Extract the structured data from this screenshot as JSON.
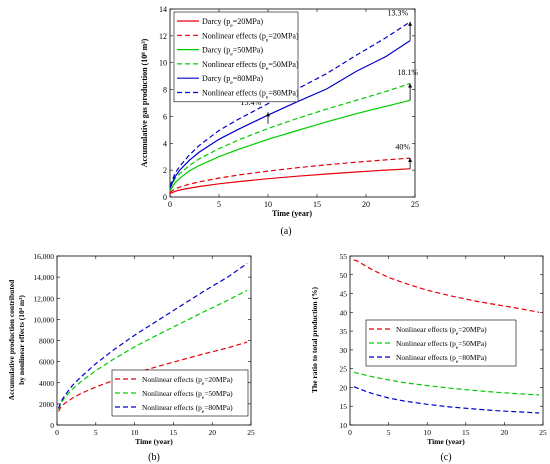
{
  "chart_data": [
    {
      "id": "a",
      "type": "line",
      "panel_label": "(a)",
      "xlabel": "Time (year)",
      "ylabel": "Accumulative gas production (10⁸ m³)",
      "xlim": [
        0,
        25
      ],
      "ylim": [
        0,
        14
      ],
      "xticks": [
        0,
        5,
        10,
        15,
        20,
        25
      ],
      "yticks": [
        0,
        2,
        4,
        6,
        8,
        10,
        12,
        14
      ],
      "legend_position": "top-left",
      "x": [
        0,
        0.5,
        1,
        2,
        3,
        5,
        7,
        10,
        13,
        16,
        19,
        22,
        24.5
      ],
      "series": [
        {
          "name": "Darcy (pₑ=20MPa)",
          "color": "#e8000b",
          "dash": "solid",
          "values": [
            0.25,
            0.42,
            0.52,
            0.66,
            0.78,
            0.98,
            1.15,
            1.36,
            1.55,
            1.71,
            1.86,
            2.0,
            2.1
          ]
        },
        {
          "name": "Nonlinear effects (pₑ=20MPa)",
          "color": "#e8000b",
          "dash": "dashed",
          "values": [
            0.35,
            0.6,
            0.74,
            0.96,
            1.13,
            1.41,
            1.64,
            1.93,
            2.18,
            2.4,
            2.59,
            2.76,
            2.9
          ]
        },
        {
          "name": "Darcy (pₑ=50MPa)",
          "color": "#00cc00",
          "dash": "solid",
          "values": [
            0.45,
            1.05,
            1.4,
            1.95,
            2.35,
            3.0,
            3.55,
            4.3,
            4.95,
            5.6,
            6.2,
            6.75,
            7.2
          ]
        },
        {
          "name": "Nonlinear effects (pₑ=50MPa)",
          "color": "#00cc00",
          "dash": "dashed",
          "values": [
            0.6,
            1.35,
            1.75,
            2.35,
            2.85,
            3.6,
            4.25,
            5.1,
            5.85,
            6.55,
            7.2,
            7.85,
            8.45
          ]
        },
        {
          "name": "Darcy (pₑ=80MPa)",
          "color": "#0000cc",
          "dash": "solid",
          "values": [
            0.65,
            1.5,
            2.0,
            2.75,
            3.35,
            4.3,
            5.05,
            6.1,
            7.1,
            8.05,
            9.35,
            10.45,
            11.65
          ]
        },
        {
          "name": "Nonlinear effects (pₑ=80MPa)",
          "color": "#0000cc",
          "dash": "dashed",
          "values": [
            0.8,
            1.75,
            2.3,
            3.15,
            3.85,
            4.95,
            5.8,
            6.95,
            8.05,
            9.2,
            10.55,
            11.85,
            13.05
          ]
        }
      ],
      "annotations": [
        {
          "text": "13.3%",
          "x": 24.5,
          "y1": 11.65,
          "y2": 13.05,
          "tx": 22.2,
          "ty": 13.5
        },
        {
          "text": "18.1%",
          "x": 24.5,
          "y1": 7.2,
          "y2": 8.45,
          "tx": 23.2,
          "ty": 9.1
        },
        {
          "text": "15.4%",
          "x": 10,
          "y1": 5.45,
          "y2": 6.3,
          "tx": 7.2,
          "ty": 6.85
        },
        {
          "text": "40%",
          "x": 24.5,
          "y1": 2.1,
          "y2": 2.9,
          "tx": 23.0,
          "ty": 3.55
        }
      ]
    },
    {
      "id": "b",
      "type": "line",
      "panel_label": "(b)",
      "xlabel": "Time (year)",
      "ylabel": "Accumulative production contributed by nonlinear effects (10⁴ m³)",
      "xlim": [
        0,
        25
      ],
      "ylim": [
        0,
        16000
      ],
      "xticks": [
        0,
        5,
        10,
        15,
        20,
        25
      ],
      "yticks": [
        0,
        2000,
        4000,
        6000,
        8000,
        10000,
        12000,
        14000,
        16000
      ],
      "ytick_labels": [
        "0",
        "2000",
        "4000",
        "6000",
        "8000",
        "10,000",
        "12,000",
        "14,000",
        "16,000"
      ],
      "legend_position": "bottom-right",
      "x": [
        0.2,
        0.5,
        1,
        2,
        3,
        5,
        7,
        10,
        13,
        16,
        19,
        22,
        24.5
      ],
      "series": [
        {
          "name": "Nonlinear effects (pₑ=20MPa)",
          "color": "#e8000b",
          "dash": "dashed",
          "values": [
            1300,
            1700,
            2050,
            2550,
            2950,
            3600,
            4150,
            4900,
            5550,
            6150,
            6750,
            7300,
            7850
          ]
        },
        {
          "name": "Nonlinear effects (pₑ=50MPa)",
          "color": "#00cc00",
          "dash": "dashed",
          "values": [
            1500,
            2050,
            2600,
            3400,
            4050,
            5150,
            6100,
            7400,
            8550,
            9650,
            10750,
            11800,
            12750
          ]
        },
        {
          "name": "Nonlinear effects (pₑ=80MPa)",
          "color": "#0000cc",
          "dash": "dashed",
          "values": [
            1600,
            2200,
            2800,
            3750,
            4500,
            5800,
            6950,
            8500,
            9900,
            11300,
            12700,
            14000,
            15300
          ]
        }
      ]
    },
    {
      "id": "c",
      "type": "line",
      "panel_label": "(c)",
      "xlabel": "Time (year)",
      "ylabel": "The ratio to total production (%)",
      "xlim": [
        0,
        25
      ],
      "ylim": [
        10,
        55
      ],
      "xticks": [
        0,
        5,
        10,
        15,
        20,
        25
      ],
      "yticks": [
        10,
        15,
        20,
        25,
        30,
        35,
        40,
        45,
        50,
        55
      ],
      "legend_position": "center-right",
      "x": [
        0.5,
        1,
        2,
        3,
        5,
        7,
        10,
        13,
        16,
        19,
        22,
        24.5
      ],
      "series": [
        {
          "name": "Nonlinear effects (pₑ=20MPa)",
          "color": "#e8000b",
          "dash": "dashed",
          "values": [
            54,
            53.6,
            52.4,
            51.2,
            49.3,
            47.8,
            45.9,
            44.4,
            43.1,
            42.0,
            41.0,
            40.0
          ]
        },
        {
          "name": "Nonlinear effects (pₑ=50MPa)",
          "color": "#00cc00",
          "dash": "dashed",
          "values": [
            24,
            23.8,
            23.3,
            22.8,
            22.0,
            21.3,
            20.5,
            19.8,
            19.2,
            18.7,
            18.3,
            18.0
          ]
        },
        {
          "name": "Nonlinear effects (pₑ=80MPa)",
          "color": "#0000cc",
          "dash": "dashed",
          "values": [
            20.2,
            19.8,
            19.0,
            18.3,
            17.2,
            16.4,
            15.5,
            14.8,
            14.3,
            13.8,
            13.5,
            13.2
          ]
        }
      ]
    }
  ]
}
